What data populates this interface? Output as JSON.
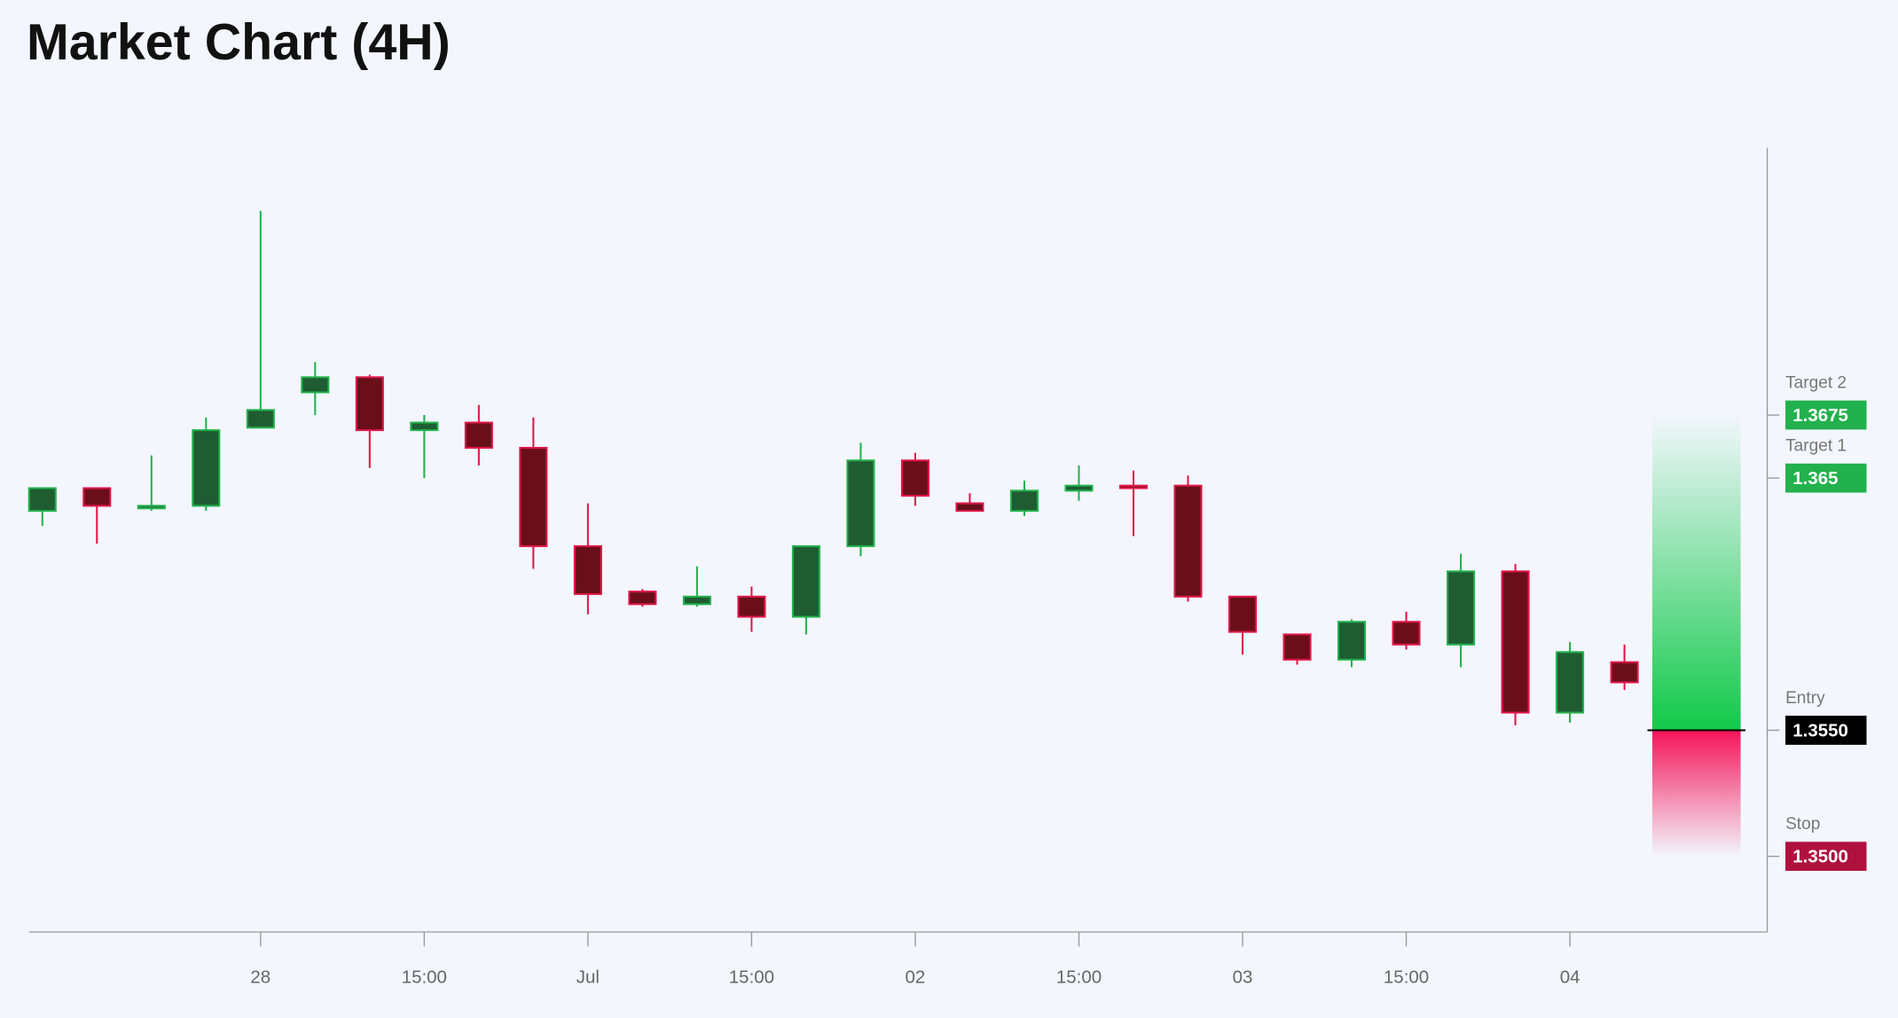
{
  "chart_data": {
    "type": "candlestick",
    "title": "Market Chart (4H)",
    "categories": [
      null,
      null,
      null,
      null,
      "28",
      null,
      null,
      "15:00",
      null,
      null,
      "Jul",
      null,
      null,
      "15:00",
      null,
      null,
      "02",
      null,
      null,
      "15:00",
      null,
      null,
      "03",
      null,
      null,
      "15:00",
      null,
      null,
      "04",
      null
    ],
    "open": [
      1.3637,
      1.3646,
      1.3638,
      1.3639,
      1.367,
      1.3684,
      1.369,
      1.3669,
      1.3672,
      1.3662,
      1.3623,
      1.3605,
      1.36,
      1.3603,
      1.3595,
      1.3623,
      1.3657,
      1.364,
      1.3637,
      1.3645,
      1.3647,
      1.3647,
      1.3603,
      1.3588,
      1.3578,
      1.3593,
      1.3584,
      1.3613,
      1.3557,
      1.3577
    ],
    "high": [
      1.3646,
      1.3646,
      1.3659,
      1.3674,
      1.3756,
      1.3696,
      1.3691,
      1.3675,
      1.3679,
      1.3674,
      1.364,
      1.3606,
      1.3615,
      1.3607,
      1.3623,
      1.3664,
      1.366,
      1.3644,
      1.3649,
      1.3655,
      1.3653,
      1.3651,
      1.3603,
      1.3588,
      1.3594,
      1.3597,
      1.362,
      1.3616,
      1.3585,
      1.3584
    ],
    "low": [
      1.3631,
      1.3624,
      1.3637,
      1.3637,
      1.367,
      1.3675,
      1.3654,
      1.365,
      1.3655,
      1.3614,
      1.3596,
      1.3599,
      1.3599,
      1.3589,
      1.3588,
      1.3619,
      1.3639,
      1.3637,
      1.3635,
      1.3641,
      1.3627,
      1.3601,
      1.358,
      1.3576,
      1.3575,
      1.3582,
      1.3575,
      1.3552,
      1.3553,
      1.3566
    ],
    "close": [
      1.3646,
      1.3639,
      1.3639,
      1.3669,
      1.3677,
      1.369,
      1.3669,
      1.3672,
      1.3662,
      1.3623,
      1.3604,
      1.36,
      1.3603,
      1.3595,
      1.3623,
      1.3657,
      1.3643,
      1.3637,
      1.3645,
      1.3647,
      1.3646,
      1.3603,
      1.3589,
      1.3578,
      1.3593,
      1.3584,
      1.3613,
      1.3557,
      1.3581,
      1.3569
    ],
    "up_color": "#1f5c32",
    "up_border": "#22b14c",
    "down_color": "#6a0f1a",
    "down_border": "#e0164a",
    "ylim": [
      1.347,
      1.3781
    ],
    "levels": [
      {
        "name": "Target 2",
        "value": 1.3675,
        "color": "#22b14c"
      },
      {
        "name": "Target 1",
        "value": 1.365,
        "color": "#22b14c"
      },
      {
        "name": "Entry",
        "value": 1.355,
        "label": "1.3550",
        "color": "#000000"
      },
      {
        "name": "Stop",
        "value": 1.35,
        "label": "1.3500",
        "color": "#b0103e"
      }
    ]
  }
}
